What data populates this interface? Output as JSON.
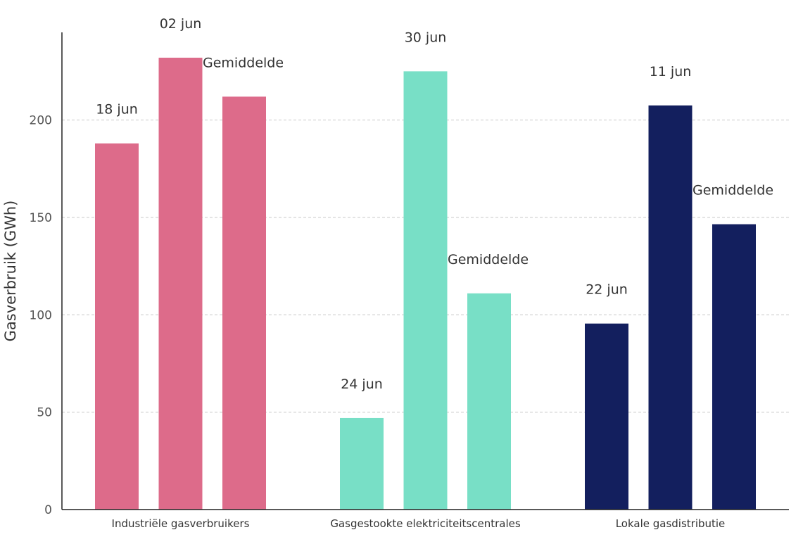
{
  "chart_data": {
    "type": "bar",
    "title": "",
    "xlabel": "",
    "ylabel": "Gasverbruik (GWh)",
    "ylim": [
      0,
      245
    ],
    "yticks": [
      0,
      50,
      100,
      150,
      200
    ],
    "grid": "horizontal-dashed",
    "categories": [
      "Industriële gasverbruikers",
      "Gasgestookte elektriciteitscentrales",
      "Lokale gasdistributie"
    ],
    "groups": [
      {
        "category": "Industriële gasverbruikers",
        "color": "#dd6b8a",
        "bars": [
          {
            "label": "18 jun",
            "value": 188
          },
          {
            "label": "02 jun",
            "value": 232
          },
          {
            "label": "Gemiddelde",
            "value": 212
          }
        ]
      },
      {
        "category": "Gasgestookte elektriciteitscentrales",
        "color": "#78dfc6",
        "bars": [
          {
            "label": "24 jun",
            "value": 47
          },
          {
            "label": "30 jun",
            "value": 225
          },
          {
            "label": "Gemiddelde",
            "value": 111
          }
        ]
      },
      {
        "category": "Lokale gasdistributie",
        "color": "#131f5e",
        "bars": [
          {
            "label": "22 jun",
            "value": 95.5
          },
          {
            "label": "11 jun",
            "value": 207.5
          },
          {
            "label": "Gemiddelde",
            "value": 146.5
          }
        ]
      }
    ]
  }
}
